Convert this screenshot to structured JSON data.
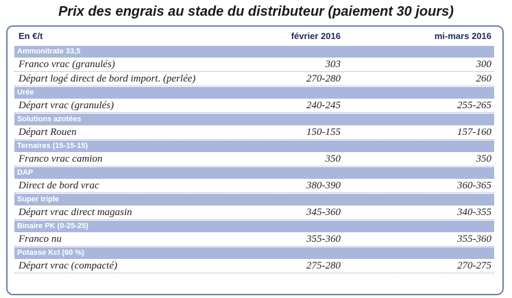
{
  "title": "Prix des engrais au stade du distributeur (paiement 30 jours)",
  "table": {
    "columns": [
      "En €/t",
      "février 2016",
      "mi-mars 2016"
    ],
    "groups": [
      {
        "name": "Ammonitrate 33,5",
        "rows": [
          {
            "label": "Franco vrac (granulés)",
            "v1": "303",
            "v2": "300"
          },
          {
            "label": "Départ logé direct de bord import. (perlée)",
            "v1": "270-280",
            "v2": "260"
          }
        ]
      },
      {
        "name": "Urée",
        "rows": [
          {
            "label": "Départ vrac (granulés)",
            "v1": "240-245",
            "v2": "255-265"
          }
        ]
      },
      {
        "name": "Solutions azotées",
        "rows": [
          {
            "label": "Départ Rouen",
            "v1": "150-155",
            "v2": "157-160"
          }
        ]
      },
      {
        "name": "Ternaires (15-15-15)",
        "rows": [
          {
            "label": "Franco vrac camion",
            "v1": "350",
            "v2": "350"
          }
        ]
      },
      {
        "name": "DAP",
        "rows": [
          {
            "label": "Direct de bord vrac",
            "v1": "380-390",
            "v2": "360-365"
          }
        ]
      },
      {
        "name": "Super triple",
        "rows": [
          {
            "label": "Départ vrac direct magasin",
            "v1": "345-360",
            "v2": "340-355"
          }
        ]
      },
      {
        "name": "Binaire PK (0-25-25)",
        "rows": [
          {
            "label": "Franco nu",
            "v1": "355-360",
            "v2": "355-360"
          }
        ]
      },
      {
        "name": "Potasse Kcl (60 %)",
        "rows": [
          {
            "label": "Départ vrac (compacté)",
            "v1": "275-280",
            "v2": "270-275"
          }
        ]
      }
    ]
  }
}
